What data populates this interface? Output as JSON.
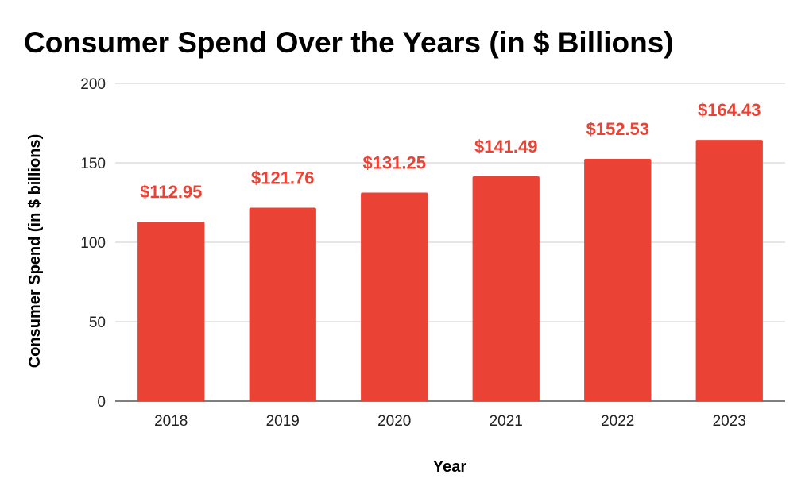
{
  "chart_data": {
    "type": "bar",
    "title": "Consumer Spend Over the Years (in $ Billions)",
    "xlabel": "Year",
    "ylabel": "Consumer Spend (in $ billions)",
    "categories": [
      "2018",
      "2019",
      "2020",
      "2021",
      "2022",
      "2023"
    ],
    "values": [
      112.95,
      121.76,
      131.25,
      141.49,
      152.53,
      164.43
    ],
    "data_labels": [
      "$112.95",
      "$121.76",
      "$131.25",
      "$141.49",
      "$152.53",
      "$164.43"
    ],
    "ylim": [
      0,
      200
    ],
    "yticks": [
      0,
      50,
      100,
      150,
      200
    ],
    "grid": true,
    "legend": "none",
    "colors": {
      "bar": "#ea4335",
      "label": "#ea4335"
    }
  }
}
